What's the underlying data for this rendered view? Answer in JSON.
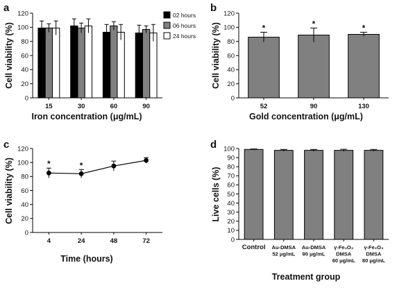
{
  "chart_data": [
    {
      "panel": "a",
      "type": "bar",
      "ylabel": "Cell viability (%)",
      "xlabel": "Iron concentration (μg/mL)",
      "ylim": [
        0,
        120
      ],
      "yticks": [
        0,
        20,
        40,
        60,
        80,
        100,
        120
      ],
      "categories": [
        "15",
        "30",
        "60",
        "90"
      ],
      "series": [
        {
          "name": "02 hours",
          "color": "#000000",
          "values": [
            99,
            102,
            93,
            92
          ],
          "errors": [
            10,
            10,
            11,
            11
          ]
        },
        {
          "name": "06 hours",
          "color": "#808080",
          "values": [
            99,
            99,
            102,
            97
          ],
          "errors": [
            6,
            7,
            6,
            5
          ]
        },
        {
          "name": "24 hours",
          "color": "#ffffff",
          "values": [
            99,
            102,
            93,
            92
          ],
          "errors": [
            10,
            10,
            11,
            12
          ]
        }
      ],
      "legend_position": "top-right",
      "grid": false
    },
    {
      "panel": "b",
      "type": "bar",
      "ylabel": "Cell viability (%)",
      "xlabel": "Gold concentration (μg/mL)",
      "ylim": [
        0,
        120
      ],
      "yticks": [
        0,
        20,
        40,
        60,
        80,
        100,
        120
      ],
      "categories": [
        "52",
        "90",
        "130"
      ],
      "series": [
        {
          "color": "#808080",
          "values": [
            86,
            89,
            90
          ],
          "errors": [
            7,
            10,
            3
          ],
          "markers": [
            "*",
            "*",
            "*"
          ]
        }
      ],
      "grid": false
    },
    {
      "panel": "c",
      "type": "line",
      "ylabel": "Cell viability (%)",
      "xlabel": "Time (hours)",
      "ylim": [
        0,
        120
      ],
      "yticks": [
        0,
        20,
        40,
        60,
        80,
        100,
        120
      ],
      "categories": [
        "4",
        "24",
        "48",
        "72"
      ],
      "series": [
        {
          "color": "#000000",
          "values": [
            85,
            84,
            95,
            103
          ],
          "errors": [
            7,
            6,
            7,
            4
          ],
          "markers": [
            "*",
            "*",
            "",
            ""
          ]
        }
      ],
      "grid": false
    },
    {
      "panel": "d",
      "type": "bar",
      "ylabel": "Live cells (%)",
      "xlabel": "Treatment group",
      "ylim": [
        0,
        100
      ],
      "yticks": [
        0,
        10,
        20,
        30,
        40,
        50,
        60,
        70,
        80,
        90,
        100
      ],
      "categories": [
        [
          "Control"
        ],
        [
          "Au-DMSA",
          "52 μg/mL"
        ],
        [
          "Au-DMSA",
          "90 μg/mL"
        ],
        [
          "γ-Fe₂O₃",
          "DMSA",
          "60 μg/mL"
        ],
        [
          "γ-Fe₂O₃",
          "DMSA",
          "80 μg/mL"
        ]
      ],
      "series": [
        {
          "color": "#808080",
          "values": [
            99,
            98,
            98,
            98,
            98
          ],
          "errors": [
            0.5,
            1,
            1,
            1.2,
            1
          ]
        }
      ],
      "grid": false
    }
  ]
}
